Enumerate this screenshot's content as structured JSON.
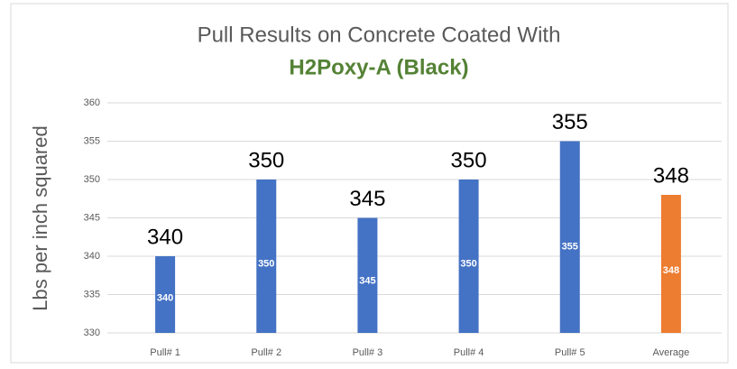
{
  "chart_data": {
    "type": "bar",
    "title": "Pull Results on Concrete Coated With",
    "subtitle": "H2Poxy-A (Black)",
    "y_label": "Lbs per inch squared",
    "categories": [
      "Pull# 1",
      "Pull# 2",
      "Pull# 3",
      "Pull# 4",
      "Pull# 5",
      "Average"
    ],
    "values": [
      340,
      350,
      345,
      350,
      355,
      348
    ],
    "colors": [
      "#4472c4",
      "#4472c4",
      "#4472c4",
      "#4472c4",
      "#4472c4",
      "#ed7d31"
    ],
    "ylim": [
      330,
      360
    ],
    "yticks": [
      330,
      335,
      340,
      345,
      350,
      355,
      360
    ],
    "grid": true
  }
}
